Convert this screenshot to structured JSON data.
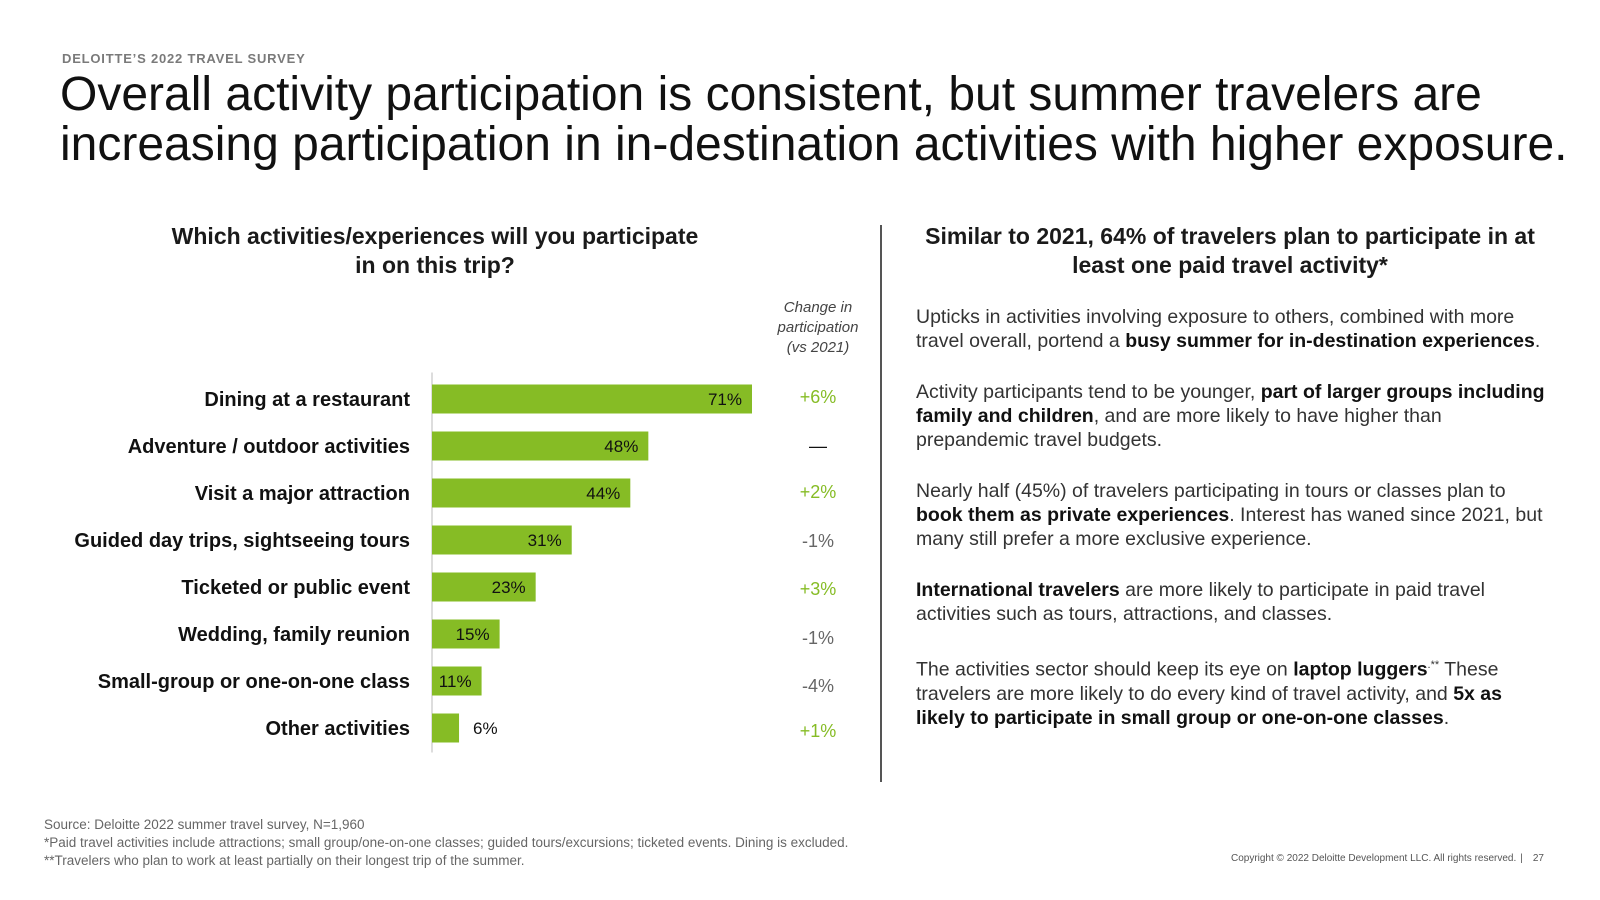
{
  "header": {
    "eyebrow": "DELOITTE’S 2022 TRAVEL SURVEY",
    "title": "Overall activity participation is consistent, but summer travelers are increasing participation in in-destination activities with higher exposure."
  },
  "left": {
    "heading": "Which activities/experiences will you participate in on this trip?",
    "change_header": "Change in participation (vs 2021)"
  },
  "chart_data": {
    "type": "bar",
    "orientation": "horizontal",
    "title": "Which activities/experiences will you participate in on this trip?",
    "categories": [
      "Dining at a restaurant",
      "Adventure / outdoor activities",
      "Visit a major attraction",
      "Guided day trips, sightseeing tours",
      "Ticketed or public event",
      "Wedding, family reunion",
      "Small-group or one-on-one class",
      "Other activities"
    ],
    "values": [
      71,
      48,
      44,
      31,
      23,
      15,
      11,
      6
    ],
    "value_labels": [
      "71%",
      "48%",
      "44%",
      "31%",
      "23%",
      "15%",
      "11%",
      "6%"
    ],
    "change_labels": [
      "+6%",
      "—",
      "+2%",
      "-1%",
      "+3%",
      "-1%",
      "-4%",
      "+1%"
    ],
    "change_values": [
      6,
      0,
      2,
      -1,
      3,
      -1,
      -4,
      1
    ],
    "xlim": [
      0,
      71
    ],
    "bar_color": "#86bc25",
    "positive_color": "#86bc25",
    "negative_color": "#666666",
    "neutral_color": "#111111"
  },
  "right": {
    "heading": "Similar to 2021, 64% of travelers plan to participate in at least one paid travel activity*",
    "p1_a": "Upticks in activities involving exposure to others, combined with more travel overall, portend a ",
    "p1_b": "busy summer for in-destination experiences",
    "p1_c": ".",
    "p2_a": "Activity participants tend to be younger, ",
    "p2_b": "part of larger groups including family and children",
    "p2_c": ", and are more likely to have higher than prepandemic travel budgets.",
    "p3_a": "Nearly half (45%) of travelers participating in tours or classes plan to ",
    "p3_b": "book them as private experiences",
    "p3_c": ". Interest has waned since 2021, but many still prefer a more exclusive experience.",
    "p4_a": "International travelers",
    "p4_b": " are more likely to participate in paid travel activities such as tours, attractions, and classes.",
    "p5_a": "The activities sector should keep its eye on ",
    "p5_b": "laptop luggers",
    "p5_c": ".**",
    "p5_d": " These travelers are more likely to do every kind of travel activity, and ",
    "p5_e": "5x as likely to participate in small group or one-on-one classes",
    "p5_f": "."
  },
  "footer": {
    "source": "Source: Deloitte 2022 summer travel survey, N=1,960",
    "note1": "*Paid travel activities include attractions; small group/one-on-one classes; guided tours/excursions; ticketed events. Dining is excluded.",
    "note2": "**Travelers who plan to work at least partially on their longest trip of the summer.",
    "copyright": "Copyright © 2022 Deloitte Development LLC. All rights reserved.",
    "page_number": "27"
  }
}
